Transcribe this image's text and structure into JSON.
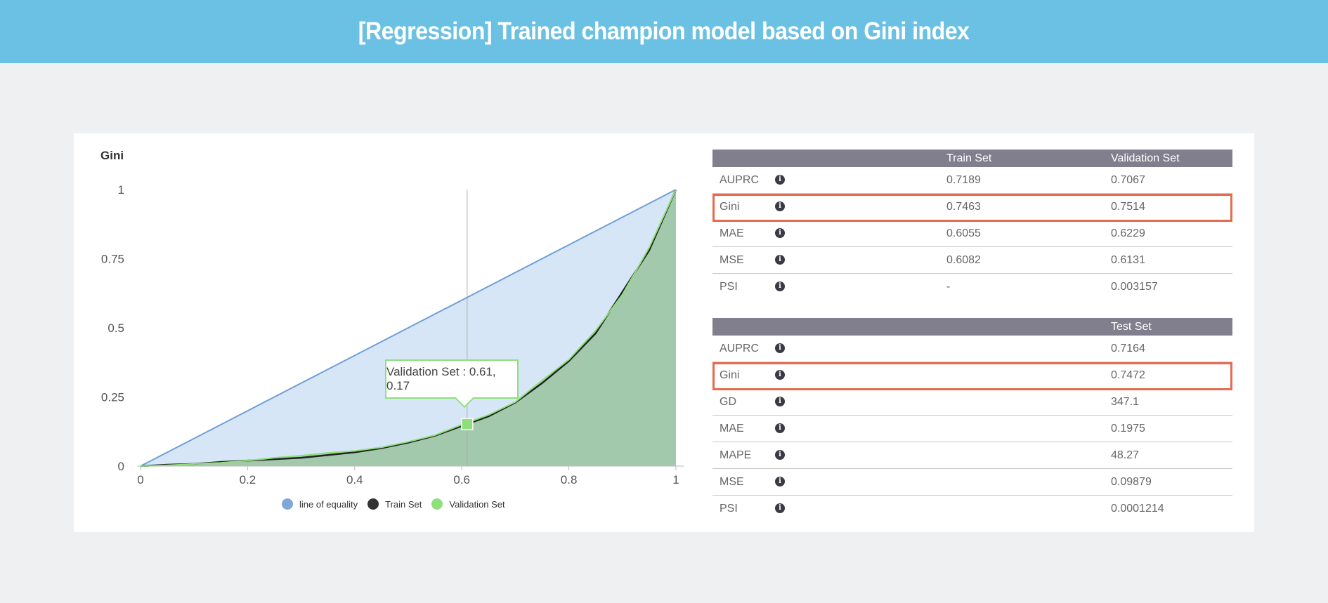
{
  "page": {
    "title": "[Regression] Trained champion model based on Gini index",
    "colors": {
      "banner": "#6bc1e3",
      "highlight": "#e56b4f",
      "table_header": "#817f8d"
    }
  },
  "chart_data": {
    "type": "area",
    "ylabel": "Gini",
    "xlim": [
      0,
      1
    ],
    "ylim": [
      0,
      1
    ],
    "x_ticks": [
      "0",
      "0.2",
      "0.4",
      "0.6",
      "0.8",
      "1"
    ],
    "y_ticks": [
      "0",
      "0.25",
      "0.5",
      "0.75",
      "1"
    ],
    "series": [
      {
        "name": "line of equality",
        "color": "#6ea0d6",
        "x": [
          0,
          1
        ],
        "y": [
          0,
          1
        ]
      },
      {
        "name": "Train Set",
        "color": "#222222",
        "x": [
          0,
          0.05,
          0.1,
          0.15,
          0.2,
          0.25,
          0.3,
          0.35,
          0.4,
          0.45,
          0.5,
          0.55,
          0.6,
          0.65,
          0.7,
          0.75,
          0.8,
          0.85,
          0.9,
          0.95,
          1
        ],
        "y": [
          0,
          0.005,
          0.008,
          0.015,
          0.02,
          0.025,
          0.03,
          0.04,
          0.05,
          0.065,
          0.085,
          0.11,
          0.145,
          0.18,
          0.23,
          0.3,
          0.38,
          0.48,
          0.63,
          0.78,
          1
        ]
      },
      {
        "name": "Validation Set",
        "color": "#8fe07a",
        "x": [
          0,
          0.05,
          0.1,
          0.15,
          0.2,
          0.25,
          0.3,
          0.35,
          0.4,
          0.45,
          0.5,
          0.55,
          0.6,
          0.65,
          0.7,
          0.75,
          0.8,
          0.85,
          0.9,
          0.95,
          1
        ],
        "y": [
          0,
          0.003,
          0.008,
          0.012,
          0.02,
          0.03,
          0.038,
          0.048,
          0.055,
          0.068,
          0.088,
          0.112,
          0.15,
          0.185,
          0.232,
          0.31,
          0.385,
          0.49,
          0.62,
          0.79,
          1
        ]
      }
    ],
    "tooltip": {
      "text": "Validation Set : 0.61, 0.17",
      "x": 0.61,
      "y": 0.17
    },
    "legend": [
      "line of equality",
      "Train Set",
      "Validation Set"
    ]
  },
  "train_validation": {
    "columns": [
      "",
      "",
      "Train Set",
      "Validation Set"
    ],
    "rows": [
      {
        "metric": "AUPRC",
        "train": "0.7189",
        "validation": "0.7067"
      },
      {
        "metric": "Gini",
        "train": "0.7463",
        "validation": "0.7514",
        "highlighted": true
      },
      {
        "metric": "MAE",
        "train": "0.6055",
        "validation": "0.6229"
      },
      {
        "metric": "MSE",
        "train": "0.6082",
        "validation": "0.6131"
      },
      {
        "metric": "PSI",
        "train": "-",
        "validation": "0.003157"
      }
    ]
  },
  "test": {
    "columns": [
      "",
      "",
      "",
      "Test Set"
    ],
    "rows": [
      {
        "metric": "AUPRC",
        "test": "0.7164"
      },
      {
        "metric": "Gini",
        "test": "0.7472",
        "highlighted": true
      },
      {
        "metric": "GD",
        "test": "347.1"
      },
      {
        "metric": "MAE",
        "test": "0.1975"
      },
      {
        "metric": "MAPE",
        "test": "48.27"
      },
      {
        "metric": "MSE",
        "test": "0.09879"
      },
      {
        "metric": "PSI",
        "test": "0.0001214"
      }
    ]
  },
  "info_icon": {
    "glyph": "i",
    "name": "info-icon"
  }
}
